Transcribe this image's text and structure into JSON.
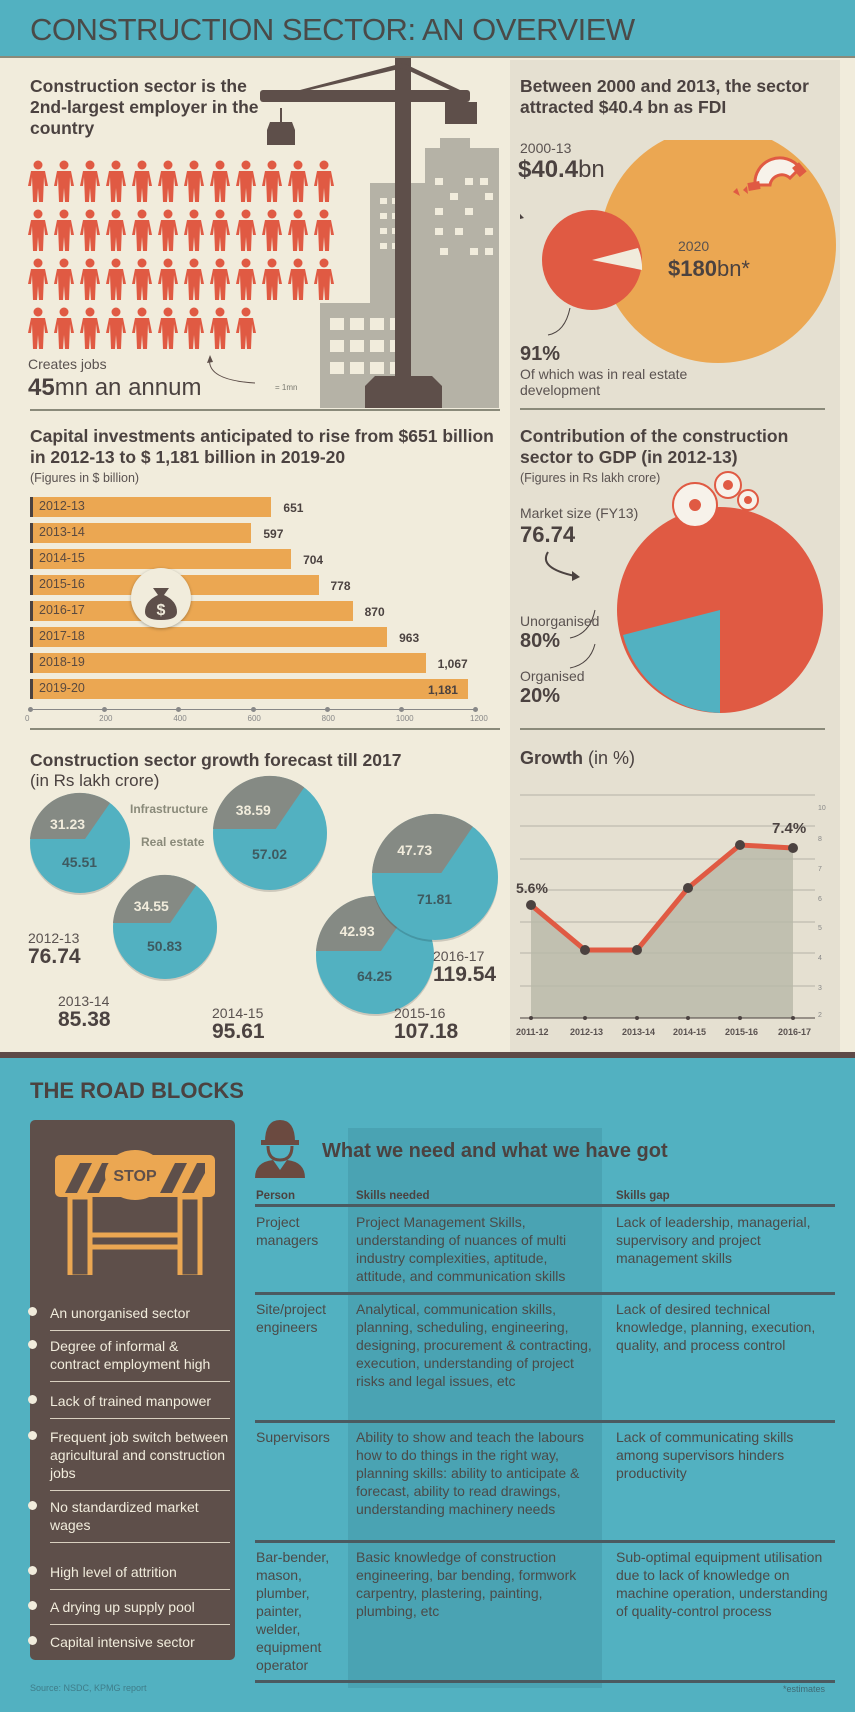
{
  "header": {
    "title": "CONSTRUCTION SECTOR: AN OVERVIEW"
  },
  "colors": {
    "teal": "#52b1c1",
    "red": "#e05a43",
    "orange": "#eba752",
    "brown": "#5e4f4a",
    "grey": "#8a8a7a",
    "cream": "#f1ecdc"
  },
  "employment": {
    "title": "Construction sector is the 2nd-largest employer in the country",
    "creates_label": "Creates jobs",
    "value": "45",
    "value_unit": "mn an annum",
    "legend": "= 1mn",
    "icon_count": 45
  },
  "fdi": {
    "title": "Between 2000 and 2013, the sector attracted $40.4 bn as FDI",
    "past_period": "2000-13",
    "past_value": "$40.4",
    "past_unit": "bn",
    "future_period": "2020",
    "future_value": "$180",
    "future_unit": "bn*",
    "share_value": "91%",
    "share_desc": "Of which was in real estate development"
  },
  "gdp": {
    "title": "Contribution of the construction sector to GDP (in 2012-13)",
    "subtitle": "(Figures in Rs lakh crore)",
    "market_label": "Market size (FY13)",
    "market_value": "76.74",
    "unorg_label": "Unorganised",
    "unorg_value": "80%",
    "org_label": "Organised",
    "org_value": "20%"
  },
  "capital": {
    "title": "Capital investments anticipated to rise from $651 billion in 2012-13 to $ 1,181 billion in 2019-20",
    "subtitle": "(Figures in $ billion)",
    "bars": [
      {
        "label": "2012-13",
        "value": 651,
        "display": "651"
      },
      {
        "label": "2013-14",
        "value": 597,
        "display": "597"
      },
      {
        "label": "2014-15",
        "value": 704,
        "display": "704"
      },
      {
        "label": "2015-16",
        "value": 778,
        "display": "778"
      },
      {
        "label": "2016-17",
        "value": 870,
        "display": "870"
      },
      {
        "label": "2017-18",
        "value": 963,
        "display": "963"
      },
      {
        "label": "2018-19",
        "value": 1067,
        "display": "1,067"
      },
      {
        "label": "2019-20",
        "value": 1181,
        "display": "1,181"
      }
    ],
    "ticks": [
      "0",
      "200",
      "400",
      "600",
      "800",
      "1000",
      "1200"
    ]
  },
  "forecast": {
    "title": "Construction sector growth forecast till 2017",
    "subtitle": "(in Rs lakh crore)",
    "legend_infra": "Infrastructure",
    "legend_real": "Real estate",
    "years": [
      {
        "year": "2012-13",
        "total": "76.74",
        "infra": "31.23",
        "real": "45.51"
      },
      {
        "year": "2013-14",
        "total": "85.38",
        "infra": "34.55",
        "real": "50.83"
      },
      {
        "year": "2014-15",
        "total": "95.61",
        "infra": "38.59",
        "real": "57.02"
      },
      {
        "year": "2015-16",
        "total": "107.18",
        "infra": "42.93",
        "real": "64.25"
      },
      {
        "year": "2016-17",
        "total": "119.54",
        "infra": "47.73",
        "real": "71.81"
      }
    ]
  },
  "growth": {
    "title": "Growth",
    "title_unit": "(in %)",
    "first_label": "5.6%",
    "last_label": "7.4%",
    "x": [
      "2011-12",
      "2012-13",
      "2013-14",
      "2014-15",
      "2015-16",
      "2016-17"
    ],
    "y_ticks": [
      "10",
      "8",
      "7",
      "6",
      "5",
      "4",
      "3",
      "2"
    ]
  },
  "roadblocks": {
    "title": "THE ROAD BLOCKS",
    "stop_label": "STOP",
    "items": [
      "An unorganised sector",
      "Degree of informal & contract employment high",
      "Lack of trained manpower",
      "Frequent job switch between agricultural and construction jobs",
      "No standardized market wages",
      "High level of attrition",
      "A drying up supply pool",
      "Capital intensive sector"
    ],
    "source": "Source: NSDC, KPMG report"
  },
  "skills": {
    "title": "What we need and what we have got",
    "headers": [
      "Person",
      "Skills needed",
      "Skills gap"
    ],
    "rows": [
      {
        "person": "Project managers",
        "needed": "Project Management Skills, understanding of nuances of multi industry complexities, aptitude, attitude, and communication skills",
        "gap": "Lack of leadership, managerial, supervisory and project management skills"
      },
      {
        "person": "Site/project engineers",
        "needed": "Analytical, communication skills, planning, scheduling, engineering, designing, procurement & contracting, execution, understanding of project risks and legal issues, etc",
        "gap": "Lack of desired technical knowledge, planning, execution, quality, and process control"
      },
      {
        "person": "Supervisors",
        "needed": "Ability to show and teach the labours how to do things in the right way, planning skills: ability to anticipate & forecast, ability to read drawings, understanding machinery needs",
        "gap": "Lack of communicating skills among supervisors hinders productivity"
      },
      {
        "person": "Bar-bender, mason, plumber, painter, welder, equipment operator",
        "needed": "Basic knowledge of construction engineering, bar bending, formwork carpentry, plastering, painting, plumbing, etc",
        "gap": "Sub-optimal equipment utilisation due to lack of knowledge on machine operation, understanding of quality-control process"
      }
    ],
    "footnote": "*estimates"
  },
  "chart_data": [
    {
      "type": "bar",
      "title": "Capital investments anticipated to rise from $651 billion in 2012-13 to $ 1,181 billion in 2019-20",
      "subtitle": "(Figures in $ billion)",
      "orientation": "horizontal",
      "categories": [
        "2012-13",
        "2013-14",
        "2014-15",
        "2015-16",
        "2016-17",
        "2017-18",
        "2018-19",
        "2019-20"
      ],
      "values": [
        651,
        597,
        704,
        778,
        870,
        963,
        1067,
        1181
      ],
      "xlabel": "",
      "ylabel": "",
      "xlim": [
        0,
        1200
      ],
      "xticks": [
        0,
        200,
        400,
        600,
        800,
        1000,
        1200
      ]
    },
    {
      "type": "line",
      "title": "Growth (in %)",
      "x": [
        "2011-12",
        "2012-13",
        "2013-14",
        "2014-15",
        "2015-16",
        "2016-17"
      ],
      "values": [
        5.6,
        4.5,
        4.5,
        6.6,
        7.5,
        7.4
      ],
      "annotations": [
        "5.6%",
        "7.4%"
      ],
      "ylim": [
        2,
        10
      ],
      "yticks": [
        2,
        3,
        4,
        5,
        6,
        7,
        8,
        10
      ],
      "grid": true,
      "area_fill": true
    },
    {
      "type": "pie",
      "title": "Contribution of the construction sector to GDP (in 2012-13)",
      "subtitle": "(Figures in Rs lakh crore)",
      "total": 76.74,
      "categories": [
        "Unorganised",
        "Organised"
      ],
      "values": [
        80,
        20
      ]
    },
    {
      "type": "pie",
      "title": "Between 2000 and 2013, the sector attracted $40.4 bn as FDI",
      "categories": [
        "Real estate development",
        "Other"
      ],
      "values": [
        91,
        9
      ],
      "totals": {
        "2000-13": 40.4,
        "2020 (estimate)": 180
      }
    },
    {
      "type": "pie",
      "title": "Construction sector growth forecast till 2017 (in Rs lakh crore)",
      "categories": [
        "2012-13",
        "2013-14",
        "2014-15",
        "2015-16",
        "2016-17"
      ],
      "series": [
        {
          "name": "Infrastructure",
          "values": [
            31.23,
            34.55,
            38.59,
            42.93,
            47.73
          ]
        },
        {
          "name": "Real estate",
          "values": [
            45.51,
            50.83,
            57.02,
            64.25,
            71.81
          ]
        }
      ],
      "totals": [
        76.74,
        85.38,
        95.61,
        107.18,
        119.54
      ]
    }
  ]
}
